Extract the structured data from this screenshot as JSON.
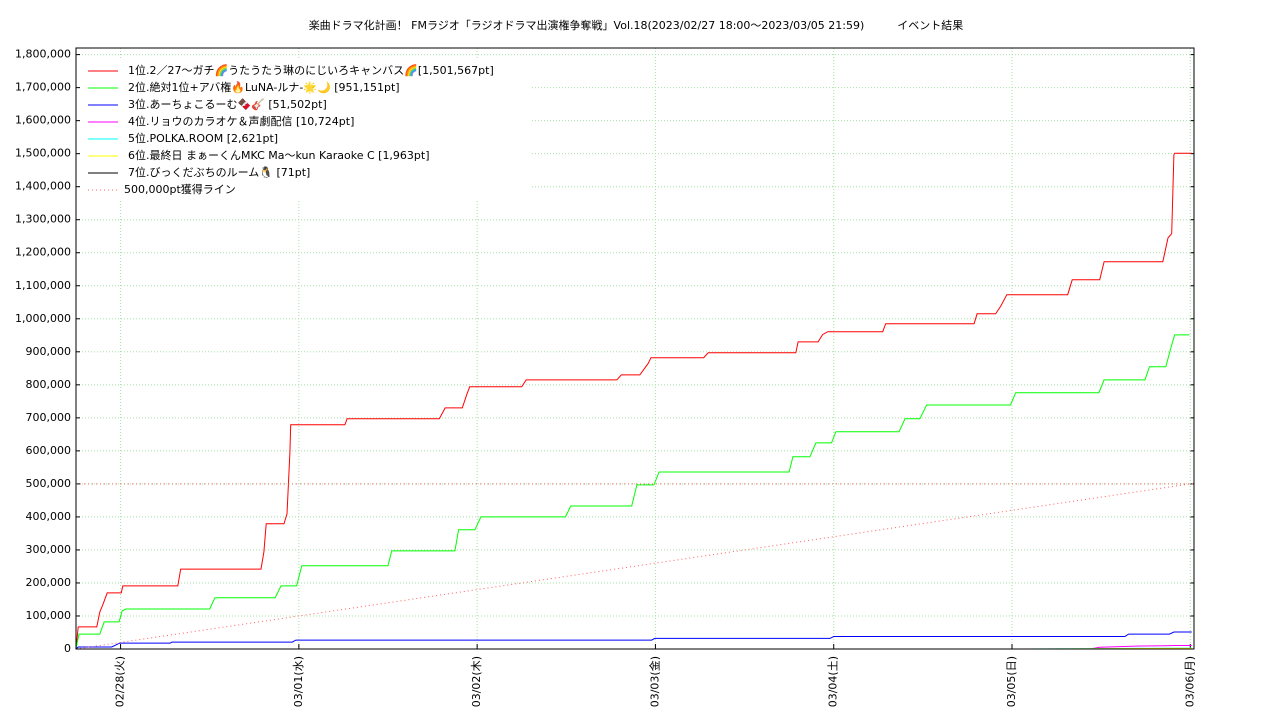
{
  "chart_data": {
    "type": "line",
    "title": "楽曲ドラマ化計画！ FMラジオ「ラジオドラマ出演権争奪戦」Vol.18(2023/02/27 18:00～2023/03/05 21:59)　　　イベント結果",
    "xlim": [
      0,
      150.5
    ],
    "ylim": [
      0,
      1820000
    ],
    "xticks": [
      {
        "value": 6,
        "label": "02/28(火)"
      },
      {
        "value": 30,
        "label": "03/01(水)"
      },
      {
        "value": 54,
        "label": "03/02(木)"
      },
      {
        "value": 78,
        "label": "03/03(金)"
      },
      {
        "value": 102,
        "label": "03/04(土)"
      },
      {
        "value": 126,
        "label": "03/05(日)"
      },
      {
        "value": 150,
        "label": "03/06(月)"
      }
    ],
    "yticks": [
      0,
      {
        "value": 100000,
        "label": "100,000"
      },
      {
        "value": 200000,
        "label": "200,000"
      },
      {
        "value": 300000,
        "label": "300,000"
      },
      {
        "value": 400000,
        "label": "400,000"
      },
      {
        "value": 500000,
        "label": "500,000"
      },
      {
        "value": 600000,
        "label": "600,000"
      },
      {
        "value": 700000,
        "label": "700,000"
      },
      {
        "value": 800000,
        "label": "800,000"
      },
      {
        "value": 900000,
        "label": "900,000"
      },
      {
        "value": 1000000,
        "label": "1,000,000"
      },
      {
        "value": 1100000,
        "label": "1,100,000"
      },
      {
        "value": 1200000,
        "label": "1,200,000"
      },
      {
        "value": 1300000,
        "label": "1,300,000"
      },
      {
        "value": 1400000,
        "label": "1,400,000"
      },
      {
        "value": 1500000,
        "label": "1,500,000"
      },
      {
        "value": 1600000,
        "label": "1,600,000"
      },
      {
        "value": 1700000,
        "label": "1,700,000"
      },
      {
        "value": 1800000,
        "label": "1,800,000"
      }
    ],
    "grid": true,
    "legend": "upper-left",
    "series": [
      {
        "name": "1位.2／27～ガチ🌈うたうたう琳のにじいろキャンバス🌈[1,501,567pt]",
        "color": "#ff0000",
        "x": [
          0,
          0.3,
          2.8,
          3.2,
          3.6,
          4.2,
          6.1,
          6.3,
          13.7,
          14.1,
          24.9,
          25.3,
          25.6,
          28.0,
          28.4,
          28.8,
          28.9,
          36.2,
          36.5,
          48.9,
          49.7,
          52.0,
          52.6,
          53.0,
          60.0,
          60.6,
          72.8,
          73.4,
          75.9,
          77.0,
          77.4,
          84.5,
          85.1,
          96.9,
          97.2,
          99.9,
          100.5,
          101.2,
          108.6,
          109.0,
          120.9,
          121.3,
          123.8,
          124.5,
          125.3,
          133.5,
          134.1,
          137.8,
          138.4,
          146.3,
          147.0,
          147.5,
          147.8,
          147.9,
          150.2
        ],
        "values": [
          0,
          67000,
          67000,
          112000,
          133000,
          170000,
          170000,
          191000,
          191000,
          242000,
          242000,
          294000,
          379000,
          379000,
          409000,
          594000,
          679000,
          679000,
          697000,
          697000,
          730000,
          730000,
          770000,
          794000,
          794000,
          815000,
          815000,
          830000,
          830000,
          864000,
          882000,
          882000,
          897000,
          897000,
          930000,
          930000,
          952000,
          961000,
          961000,
          985000,
          985000,
          1015000,
          1015000,
          1039000,
          1073000,
          1073000,
          1118000,
          1118000,
          1173000,
          1173000,
          1245000,
          1258000,
          1497000,
          1501567,
          1501567
        ]
      },
      {
        "name": "2位.絶対1位+アバ権🔥LuNA-ルナ-🌟🌙 [951,151pt]",
        "color": "#00ff00",
        "x": [
          0,
          0.4,
          3.2,
          3.8,
          5.8,
          6.2,
          6.7,
          18.0,
          18.7,
          26.8,
          27.6,
          29.7,
          30.4,
          42.0,
          42.5,
          51.0,
          51.5,
          53.7,
          54.5,
          65.9,
          66.6,
          74.8,
          75.5,
          77.8,
          78.5,
          96.0,
          96.5,
          98.8,
          99.6,
          101.7,
          102.3,
          110.8,
          111.6,
          113.6,
          114.5,
          125.8,
          126.5,
          137.7,
          138.4,
          143.9,
          144.5,
          146.7,
          147.5,
          147.9,
          149.9
        ],
        "values": [
          0,
          45000,
          45000,
          82000,
          82000,
          115000,
          121000,
          121000,
          155000,
          155000,
          191000,
          191000,
          252000,
          252000,
          297000,
          297000,
          361000,
          361000,
          400000,
          400000,
          433000,
          433000,
          497000,
          497000,
          536000,
          536000,
          582000,
          582000,
          624000,
          624000,
          658000,
          658000,
          697000,
          697000,
          739000,
          739000,
          776000,
          776000,
          815000,
          815000,
          855000,
          855000,
          921000,
          951151,
          951151
        ]
      },
      {
        "name": "3位.あーちょこるーむ🍫🎸 [51,502pt]",
        "color": "#0000ff",
        "x": [
          0,
          0.3,
          4.8,
          5.9,
          12.7,
          12.9,
          29.1,
          29.6,
          77.5,
          77.9,
          101.5,
          102.0,
          141.2,
          141.7,
          147.2,
          147.8,
          150.2
        ],
        "values": [
          0,
          6000,
          6000,
          18000,
          18000,
          21000,
          21000,
          27000,
          27000,
          32000,
          32000,
          38000,
          38000,
          45000,
          45000,
          51502,
          51502
        ]
      },
      {
        "name": "4位.リョウのカラオケ＆声劇配信 [10,724pt]",
        "color": "#ff00ff",
        "x": [
          136.5,
          137.8,
          143.2,
          146.6,
          147.9,
          150.2
        ],
        "values": [
          0,
          5000,
          9000,
          10000,
          10724,
          10724
        ]
      },
      {
        "name": "5位.POLKA.ROOM [2,621pt]",
        "color": "#00ffff",
        "x": [
          127.7,
          140.0,
          147.9,
          150.2
        ],
        "values": [
          0,
          1500,
          2621,
          2621
        ]
      },
      {
        "name": "6位.最終日 まぁーくんMKC Ma〜kun Karaoke C [1,963pt]",
        "color": "#ffff00",
        "x": [
          130.0,
          141.0,
          147.9,
          150.2
        ],
        "values": [
          0,
          1200,
          1963,
          1963
        ]
      },
      {
        "name": "7位.びっくだぶちのルーム🐧 [71pt]",
        "color": "#000000",
        "x": [
          140.0,
          147.9,
          150.2
        ],
        "values": [
          0,
          71,
          71
        ]
      },
      {
        "name": "500,000pt獲得ライン",
        "color": "#ff6060",
        "linestyle": "dotted",
        "x": [
          0,
          150,
          null,
          0,
          150.5
        ],
        "values": [
          0,
          500000,
          null,
          500000,
          500000
        ]
      }
    ]
  }
}
